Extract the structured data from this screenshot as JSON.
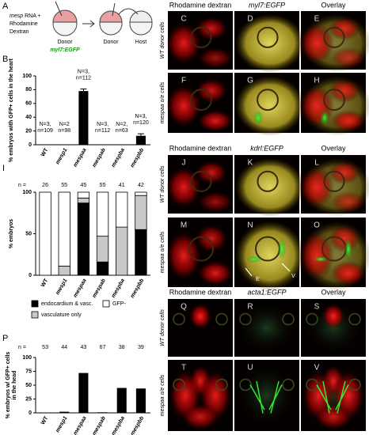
{
  "schematic": {
    "panel": "A",
    "injection": "mesp",
    "injection_rest": "RNA +",
    "line2": "Rhodamine",
    "line3": "Dextran",
    "donor": "Donor",
    "donor2": "Donor",
    "host": "Host",
    "transgene": "myl7:EGFP"
  },
  "image_blocks": [
    {
      "headers": [
        "Rhodamine dextran",
        "myl7:EGFP",
        "Overlay"
      ],
      "rows": [
        {
          "label": "WT donor cells",
          "letters": [
            "C",
            "D",
            "E"
          ]
        },
        {
          "label": "mespaa o/e cells",
          "letters": [
            "F",
            "G",
            "H"
          ]
        }
      ]
    },
    {
      "headers": [
        "Rhodamine dextran",
        "kdrl:EGFP",
        "Overlay"
      ],
      "rows": [
        {
          "label": "WT donor cells",
          "letters": [
            "J",
            "K",
            "L"
          ]
        },
        {
          "label": "mespaa o/e cells",
          "letters": [
            "M",
            "N",
            "O"
          ]
        }
      ],
      "arrow_labels": [
        "E",
        "V"
      ]
    },
    {
      "headers": [
        "Rhodamine dextran",
        "acta1:EGFP",
        "Overlay"
      ],
      "rows": [
        {
          "label": "WT donor cells",
          "letters": [
            "Q",
            "R",
            "S"
          ]
        },
        {
          "label": "mespaa o/e cells",
          "letters": [
            "T",
            "U",
            "V"
          ]
        }
      ]
    }
  ],
  "chart_data": [
    {
      "type": "bar",
      "panel": "B",
      "ylabel": "% embryos with GFP+ cells in the heart",
      "categories": [
        "WT",
        "mesp1",
        "mespaa",
        "mespab",
        "mespba",
        "mespbb"
      ],
      "values": [
        0,
        0,
        78,
        0,
        0,
        13
      ],
      "errors": [
        null,
        null,
        3,
        null,
        null,
        3
      ],
      "color": "#000000",
      "annotations": [
        [
          "N=3,",
          "n=109"
        ],
        [
          "N=2",
          "n=98"
        ],
        [
          "N=3,",
          "n=112"
        ],
        [
          "N=3,",
          "n=112"
        ],
        [
          "N=2,",
          "n=63"
        ],
        [
          "N=3,",
          "n=120"
        ]
      ],
      "ylim": [
        0,
        100
      ],
      "yticks": [
        0,
        20,
        40,
        60,
        80,
        100
      ]
    },
    {
      "type": "stacked_bar",
      "panel": "I",
      "ylabel": "% embryos",
      "categories": [
        "WT",
        "mesp1",
        "mespaa",
        "mespab",
        "mespba",
        "mespbb"
      ],
      "n_label": "n =",
      "n_values": [
        26,
        55,
        45,
        55,
        41,
        42
      ],
      "series": [
        {
          "name": "endocardium & vasc.",
          "color": "#000000",
          "values": [
            0,
            0,
            87,
            16,
            0,
            55
          ]
        },
        {
          "name": "vasculature only",
          "color": "#c8c8c8",
          "values": [
            0,
            11,
            6,
            31,
            58,
            41
          ]
        },
        {
          "name": "GFP-",
          "color": "#ffffff",
          "values": [
            100,
            89,
            7,
            53,
            42,
            4
          ]
        }
      ],
      "ylim": [
        0,
        100
      ],
      "yticks": [
        0,
        50,
        100
      ]
    },
    {
      "type": "bar",
      "panel": "P",
      "ylabel": [
        "% embryos w/ GFP+ cells",
        "in the head"
      ],
      "categories": [
        "WT",
        "mesp1",
        "mespaa",
        "mespab",
        "mespba",
        "mespbb"
      ],
      "n_label": "n =",
      "n_values": [
        53,
        44,
        43,
        67,
        38,
        39
      ],
      "values": [
        0,
        2,
        72,
        1,
        45,
        44
      ],
      "color": "#000000",
      "ylim": [
        0,
        100
      ],
      "yticks": [
        0,
        25,
        50,
        75,
        100
      ]
    }
  ]
}
